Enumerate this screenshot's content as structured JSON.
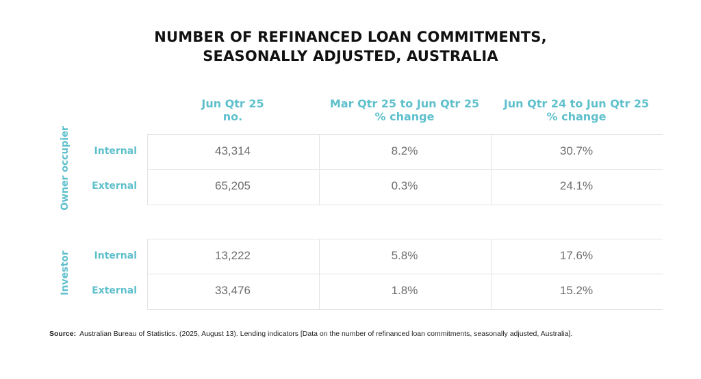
{
  "title": {
    "line1": "NUMBER OF REFINANCED LOAN COMMITMENTS,",
    "line2": "SEASONALLY ADJUSTED, AUSTRALIA"
  },
  "columns": [
    {
      "line1": "Jun Qtr 25",
      "line2": "no."
    },
    {
      "line1": "Mar Qtr 25 to Jun Qtr 25",
      "line2": "% change"
    },
    {
      "line1": "Jun Qtr 24 to Jun Qtr 25",
      "line2": "% change"
    }
  ],
  "groups": [
    {
      "label": "Owner occupier",
      "rows": [
        {
          "label": "Internal",
          "values": [
            "43,314",
            "8.2%",
            "30.7%"
          ]
        },
        {
          "label": "External",
          "values": [
            "65,205",
            "0.3%",
            "24.1%"
          ]
        }
      ]
    },
    {
      "label": "Investor",
      "rows": [
        {
          "label": "Internal",
          "values": [
            "13,222",
            "5.8%",
            "17.6%"
          ]
        },
        {
          "label": "External",
          "values": [
            "33,476",
            "1.8%",
            "15.2%"
          ]
        }
      ]
    }
  ],
  "source": {
    "label": "Source:",
    "text": "Australian Bureau of Statistics. (2025, August 13). Lending indicators [Data on the number of refinanced loan commitments, seasonally adjusted, Australia]."
  },
  "chart_data": {
    "type": "table",
    "title": "NUMBER OF REFINANCED LOAN COMMITMENTS, SEASONALLY ADJUSTED, AUSTRALIA",
    "columns": [
      "Jun Qtr 25 no.",
      "Mar Qtr 25 to Jun Qtr 25 % change",
      "Jun Qtr 24 to Jun Qtr 25 % change"
    ],
    "rows": [
      {
        "group": "Owner occupier",
        "label": "Internal",
        "jun_qtr_25_no": 43314,
        "q_on_q_pct_change": 8.2,
        "y_on_y_pct_change": 30.7
      },
      {
        "group": "Owner occupier",
        "label": "External",
        "jun_qtr_25_no": 65205,
        "q_on_q_pct_change": 0.3,
        "y_on_y_pct_change": 24.1
      },
      {
        "group": "Investor",
        "label": "Internal",
        "jun_qtr_25_no": 13222,
        "q_on_q_pct_change": 5.8,
        "y_on_y_pct_change": 17.6
      },
      {
        "group": "Investor",
        "label": "External",
        "jun_qtr_25_no": 33476,
        "q_on_q_pct_change": 1.8,
        "y_on_y_pct_change": 15.2
      }
    ],
    "colors": {
      "accent": "#5fc0cc",
      "title": "#111111",
      "value": "#6d6d6d",
      "gridline": "#e4e4e4"
    }
  }
}
